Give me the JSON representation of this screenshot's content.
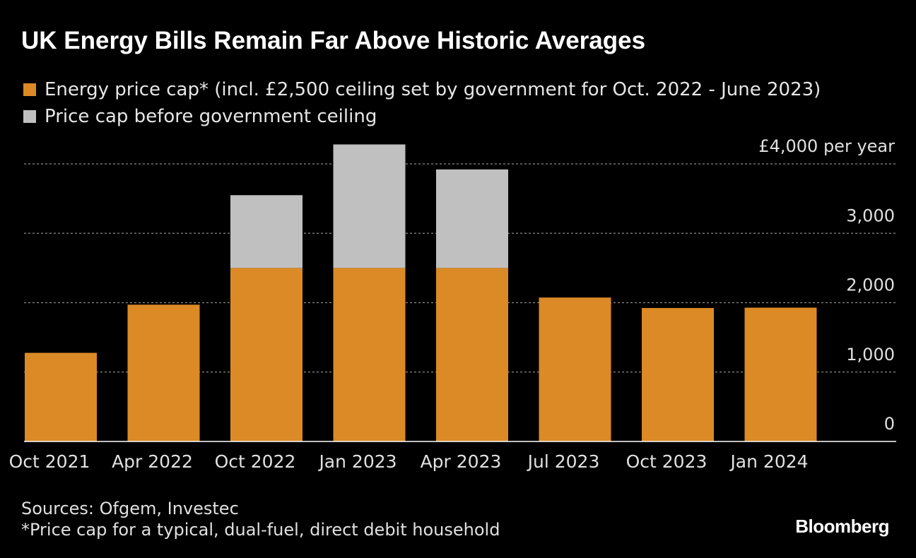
{
  "title": "UK Energy Bills Remain Far Above Historic Averages",
  "legend": [
    {
      "label": "Energy price cap* (incl. £2,500 ceiling set by government for Oct. 2022 - June 2023)",
      "color": "#DB8A25"
    },
    {
      "label": "Price cap before government ceiling",
      "color": "#C0C0C0"
    }
  ],
  "chart_data": {
    "type": "bar",
    "stacked": true,
    "title": "UK Energy Bills Remain Far Above Historic Averages",
    "categories": [
      "Oct 2021",
      "Apr 2022",
      "Oct 2022",
      "Jan 2023",
      "Apr 2023",
      "Jul 2023",
      "Oct 2023",
      "Jan 2024"
    ],
    "series": [
      {
        "name": "Energy price cap* (incl. £2,500 ceiling set by government for Oct. 2022 - June 2023)",
        "color": "#DB8A25",
        "values": [
          1277,
          1971,
          2500,
          2500,
          2500,
          2074,
          1923,
          1928
        ]
      },
      {
        "name": "Price cap before government ceiling",
        "color": "#C0C0C0",
        "values": [
          0,
          0,
          1049,
          1780,
          1420,
          0,
          0,
          0
        ]
      }
    ],
    "y_ticks": [
      0,
      1000,
      2000,
      3000,
      4000
    ],
    "y_tick_labels": [
      "0",
      "1,000",
      "2,000",
      "3,000",
      "£4,000 per year"
    ],
    "ylim": [
      0,
      4000
    ],
    "grid": true,
    "xlabel": "",
    "ylabel": ""
  },
  "footer": {
    "sources": "Sources: Ofgem, Investec",
    "note": "*Price cap for a typical, dual-fuel, direct debit household"
  },
  "brand": "Bloomberg"
}
